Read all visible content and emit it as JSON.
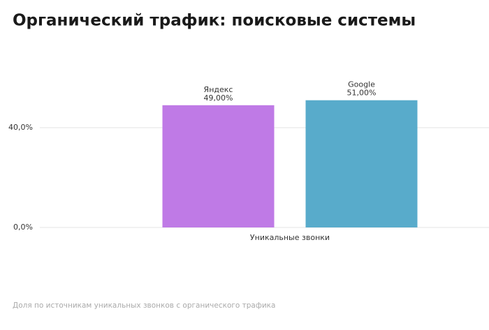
{
  "chart_data": {
    "type": "bar",
    "title": "Органический трафик: поисковые системы",
    "caption": "Доля по источникам уникальных звонков с органического трафика",
    "categories": [
      "Уникальные звонки"
    ],
    "series": [
      {
        "name": "Яндекс",
        "color": "#bf7ae6",
        "values": [
          49
        ],
        "value_labels": [
          "49,00%"
        ]
      },
      {
        "name": "Google",
        "color": "#58abcb",
        "values": [
          51
        ],
        "value_labels": [
          "51,00%"
        ]
      }
    ],
    "ylim": [
      0,
      60
    ],
    "yticks": [
      {
        "value": 0,
        "label": "0,0%"
      },
      {
        "value": 40,
        "label": "40,0%"
      }
    ],
    "grid": true
  }
}
